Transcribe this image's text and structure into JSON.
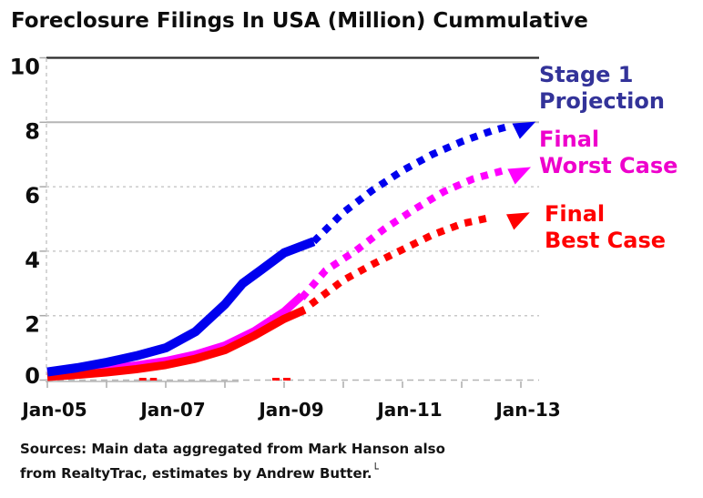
{
  "title": "Foreclosure Filings In USA (Million) Cummulative",
  "legend": [
    {
      "lines": [
        "Stage 1",
        "Projection"
      ],
      "color": "#333399"
    },
    {
      "lines": [
        "Final",
        "Worst Case"
      ],
      "color": "#ee00cc"
    },
    {
      "lines": [
        "Final",
        "Best Case"
      ],
      "color": "#ff0000"
    }
  ],
  "sources": {
    "line1": "Sources: Main data aggregated from Mark Hanson also",
    "line2": "from RealtyTrac, estimates by Andrew Butter.",
    "footnote_mark": "└"
  },
  "chart_data": {
    "type": "line",
    "title": "Foreclosure Filings In USA (Million) Cummulative",
    "xlabel": "",
    "ylabel": "",
    "ylim": [
      0,
      10
    ],
    "y_ticks": [
      0,
      2,
      4,
      6,
      8,
      10
    ],
    "x_ticks": [
      {
        "label": "Jan-05",
        "year": 2005
      },
      {
        "label": "Jan-07",
        "year": 2007
      },
      {
        "label": "Jan-09",
        "year": 2009
      },
      {
        "label": "Jan-11",
        "year": 2011
      },
      {
        "label": "Jan-13",
        "year": 2013
      }
    ],
    "x_minor_tick_years": [
      2005,
      2006,
      2007,
      2008,
      2009,
      2010,
      2011,
      2012,
      2013
    ],
    "xlim_years": [
      2005,
      2013.3
    ],
    "gridlines": "horizontal; dashed light gray at 2/4/6 and 0, solid at 8, dark solid at 10",
    "legend_position": "right of plot",
    "series": [
      {
        "name": "Stage 1 (actual)",
        "color": "#0000ee",
        "style": "solid",
        "points": [
          [
            2005,
            0.25
          ],
          [
            2005.5,
            0.38
          ],
          [
            2006,
            0.55
          ],
          [
            2006.5,
            0.75
          ],
          [
            2007,
            1.0
          ],
          [
            2007.5,
            1.5
          ],
          [
            2008,
            2.35
          ],
          [
            2008.3,
            3.0
          ],
          [
            2008.6,
            3.4
          ],
          [
            2009,
            3.95
          ],
          [
            2009.5,
            4.3
          ]
        ]
      },
      {
        "name": "Stage 1 Projection",
        "color": "#0000ee",
        "style": "dotted",
        "arrow": true,
        "points": [
          [
            2009.5,
            4.3
          ],
          [
            2010,
            5.2
          ],
          [
            2010.5,
            5.9
          ],
          [
            2011,
            6.5
          ],
          [
            2011.5,
            7.0
          ],
          [
            2012,
            7.4
          ],
          [
            2012.5,
            7.73
          ],
          [
            2012.85,
            7.9
          ],
          [
            2013.25,
            8.02
          ]
        ]
      },
      {
        "name": "Worst Case (actual)",
        "color": "#ff00ff",
        "style": "solid",
        "points": [
          [
            2005,
            0.13
          ],
          [
            2005.5,
            0.2
          ],
          [
            2006,
            0.28
          ],
          [
            2006.5,
            0.38
          ],
          [
            2007,
            0.52
          ],
          [
            2007.5,
            0.72
          ],
          [
            2008,
            1.0
          ],
          [
            2008.5,
            1.45
          ],
          [
            2009,
            2.05
          ],
          [
            2009.3,
            2.55
          ]
        ]
      },
      {
        "name": "Final Worst Case",
        "color": "#ff00ff",
        "style": "dotted",
        "arrow": true,
        "points": [
          [
            2009.3,
            2.55
          ],
          [
            2009.7,
            3.4
          ],
          [
            2010.2,
            4.0
          ],
          [
            2010.7,
            4.7
          ],
          [
            2011.2,
            5.3
          ],
          [
            2011.7,
            5.85
          ],
          [
            2012.2,
            6.25
          ],
          [
            2012.7,
            6.5
          ],
          [
            2013.17,
            6.61
          ]
        ]
      },
      {
        "name": "Best Case (actual)",
        "color": "#ff0000",
        "style": "solid",
        "points": [
          [
            2005,
            0.1
          ],
          [
            2005.5,
            0.16
          ],
          [
            2006,
            0.24
          ],
          [
            2006.5,
            0.34
          ],
          [
            2007,
            0.47
          ],
          [
            2007.5,
            0.66
          ],
          [
            2008,
            0.93
          ],
          [
            2008.5,
            1.38
          ],
          [
            2009,
            1.9
          ],
          [
            2009.35,
            2.18
          ]
        ]
      },
      {
        "name": "Final Best Case",
        "color": "#ff0000",
        "style": "dotted",
        "arrow": true,
        "points": [
          [
            2009.45,
            2.35
          ],
          [
            2010,
            3.1
          ],
          [
            2010.5,
            3.6
          ],
          [
            2011,
            4.05
          ],
          [
            2011.5,
            4.5
          ],
          [
            2012,
            4.85
          ],
          [
            2012.5,
            5.05
          ],
          [
            2013.15,
            5.2
          ]
        ]
      }
    ],
    "near_zero_marks": {
      "color": "#ff0000",
      "value": 0.03,
      "segments_years": [
        [
          2006.55,
          2006.85
        ],
        [
          2008.8,
          2009.15
        ]
      ]
    }
  }
}
